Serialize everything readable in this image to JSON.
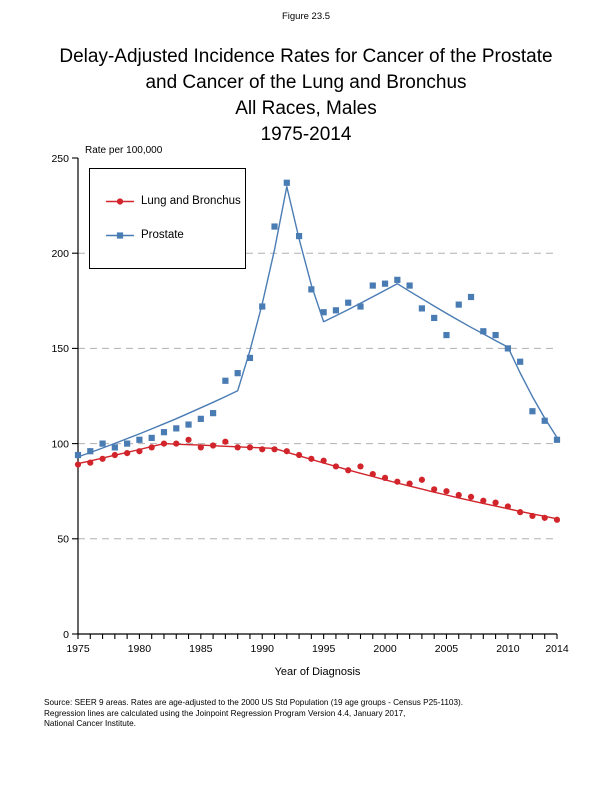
{
  "figure_label": "Figure 23.5",
  "title_lines": [
    "Delay-Adjusted Incidence Rates for Cancer of the Prostate",
    "and Cancer of the Lung and Bronchus",
    "All Races, Males",
    "1975-2014"
  ],
  "legend": [
    {
      "label": "Lung and Bronchus",
      "color": "#d1242b",
      "marker": "circle"
    },
    {
      "label": "Prostate",
      "color": "#4a7cb4",
      "marker": "square"
    }
  ],
  "footer_lines": [
    "Source: SEER 9 areas.  Rates are age-adjusted to the 2000 US Std Population (19 age groups - Census P25-1103).",
    "Regression lines are calculated using the Joinpoint Regression Program Version 4.4, January 2017,",
    "National Cancer Institute."
  ],
  "colors": {
    "lung": "#d1242b",
    "prostate": "#4a7cb4",
    "grid": "#b0b0b0",
    "axis": "#000000"
  },
  "chart_data": {
    "type": "scatter",
    "title": "Delay-Adjusted Incidence Rates for Cancer of the Prostate and Cancer of the Lung and Bronchus, All Races, Males, 1975-2014",
    "ylabel": "Rate per 100,000",
    "xlabel": "Year of Diagnosis",
    "ylim": [
      0,
      250
    ],
    "xlim": [
      1975,
      2014
    ],
    "yticks": [
      0,
      50,
      100,
      150,
      200,
      250
    ],
    "gridlines": [
      50,
      100,
      150,
      200
    ],
    "grid_style": "dashed",
    "legend_position": "top-left",
    "xtick_labels": [
      1975,
      1980,
      1985,
      1990,
      1995,
      2000,
      2005,
      2010,
      2014
    ],
    "x": [
      1975,
      1976,
      1977,
      1978,
      1979,
      1980,
      1981,
      1982,
      1983,
      1984,
      1985,
      1986,
      1987,
      1988,
      1989,
      1990,
      1991,
      1992,
      1993,
      1994,
      1995,
      1996,
      1997,
      1998,
      1999,
      2000,
      2001,
      2002,
      2003,
      2004,
      2005,
      2006,
      2007,
      2008,
      2009,
      2010,
      2011,
      2012,
      2013,
      2014
    ],
    "series": [
      {
        "name": "Lung and Bronchus",
        "marker": "circle",
        "color": "#d1242b",
        "values": [
          89,
          90,
          92,
          94,
          95,
          96,
          98,
          100,
          100,
          102,
          98,
          99,
          101,
          98,
          98,
          97,
          97,
          96,
          94,
          92,
          91,
          88,
          86,
          88,
          84,
          82,
          80,
          79,
          81,
          76,
          75,
          73,
          72,
          70,
          69,
          67,
          64,
          62,
          61,
          60
        ]
      },
      {
        "name": "Prostate",
        "marker": "square",
        "color": "#4a7cb4",
        "values": [
          94,
          96,
          100,
          98,
          100,
          102,
          103,
          106,
          108,
          110,
          113,
          116,
          133,
          137,
          145,
          172,
          214,
          237,
          209,
          181,
          169,
          170,
          174,
          172,
          183,
          184,
          186,
          183,
          171,
          166,
          157,
          173,
          177,
          159,
          157,
          150,
          143,
          117,
          112,
          102
        ]
      }
    ],
    "trend_lines": [
      {
        "name": "Lung and Bronchus joinpoint trend",
        "color": "#d1242b",
        "values": [
          89.5,
          90.9,
          92.4,
          93.9,
          95.4,
          96.9,
          98.4,
          100,
          99.7,
          99.4,
          99.2,
          98.9,
          98.6,
          98.3,
          98,
          97.8,
          97.5,
          95.5,
          93.6,
          91.7,
          89.8,
          88,
          86.2,
          84.4,
          82.7,
          81,
          79.3,
          77.7,
          76.1,
          74.5,
          73,
          71.5,
          70,
          68.6,
          67.2,
          65.8,
          64.4,
          63.1,
          61.8,
          60.5
        ]
      },
      {
        "name": "Prostate joinpoint trend",
        "color": "#4a7cb4",
        "values": [
          93,
          95.3,
          97.7,
          100.1,
          102.6,
          105.1,
          107.7,
          110.4,
          113.1,
          115.9,
          118.8,
          121.7,
          124.7,
          127.8,
          148.8,
          173.3,
          201.8,
          235,
          207.5,
          183.2,
          164,
          167.2,
          170.4,
          173.7,
          177.1,
          180.5,
          184,
          180,
          176.1,
          172.2,
          168.4,
          164.7,
          161.1,
          157.6,
          154.1,
          150.7,
          137.1,
          124.7,
          113.4,
          103.2
        ]
      }
    ]
  }
}
